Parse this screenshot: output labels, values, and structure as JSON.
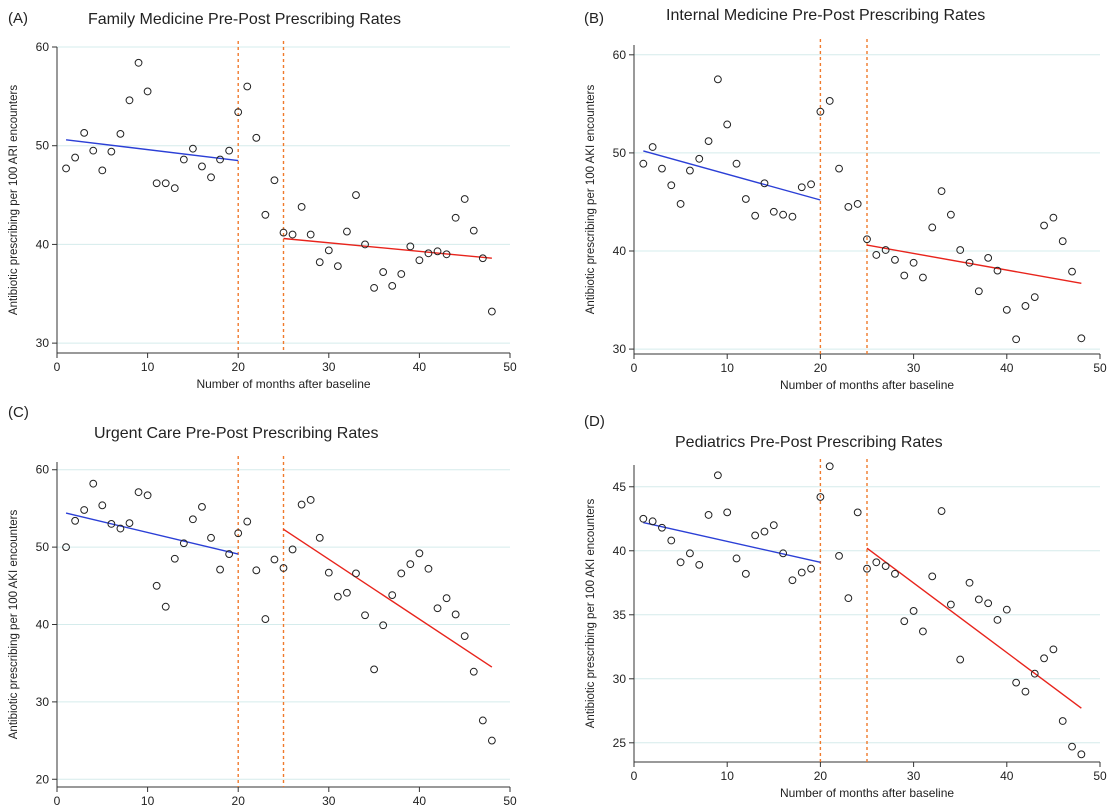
{
  "chart_data": [
    {
      "panel_label": "(A)",
      "type": "scatter",
      "title": "Family Medicine Pre-Post Prescribing Rates",
      "xlabel": "Number of months after baseline",
      "ylabel": "Antibiotic prescribing per 100 ARI encounters",
      "xlim": [
        0,
        50
      ],
      "ylim": [
        29,
        60
      ],
      "xticks": [
        0,
        10,
        20,
        30,
        40,
        50
      ],
      "yticks": [
        30,
        40,
        50,
        60
      ],
      "grid": true,
      "vlines": [
        20,
        25
      ],
      "points": [
        [
          1,
          47.7
        ],
        [
          2,
          48.8
        ],
        [
          3,
          51.3
        ],
        [
          4,
          49.5
        ],
        [
          5,
          47.5
        ],
        [
          6,
          49.4
        ],
        [
          7,
          51.2
        ],
        [
          8,
          54.6
        ],
        [
          9,
          58.4
        ],
        [
          10,
          55.5
        ],
        [
          11,
          46.2
        ],
        [
          12,
          46.2
        ],
        [
          13,
          45.7
        ],
        [
          14,
          48.6
        ],
        [
          15,
          49.7
        ],
        [
          16,
          47.9
        ],
        [
          17,
          46.8
        ],
        [
          18,
          48.6
        ],
        [
          19,
          49.5
        ],
        [
          20,
          53.4
        ],
        [
          21,
          56.0
        ],
        [
          22,
          50.8
        ],
        [
          23,
          43.0
        ],
        [
          24,
          46.5
        ],
        [
          25,
          41.2
        ],
        [
          26,
          41.0
        ],
        [
          27,
          43.8
        ],
        [
          28,
          41.0
        ],
        [
          29,
          38.2
        ],
        [
          30,
          39.4
        ],
        [
          31,
          37.8
        ],
        [
          32,
          41.3
        ],
        [
          33,
          45.0
        ],
        [
          34,
          40.0
        ],
        [
          35,
          35.6
        ],
        [
          36,
          37.2
        ],
        [
          37,
          35.8
        ],
        [
          38,
          37.0
        ],
        [
          39,
          39.8
        ],
        [
          40,
          38.4
        ],
        [
          41,
          39.1
        ],
        [
          42,
          39.3
        ],
        [
          43,
          39.0
        ],
        [
          44,
          42.7
        ],
        [
          45,
          44.6
        ],
        [
          46,
          41.4
        ],
        [
          47,
          38.6
        ],
        [
          48,
          33.2
        ]
      ],
      "trend_pre": [
        [
          1,
          50.6
        ],
        [
          20,
          48.5
        ]
      ],
      "trend_post": [
        [
          25,
          40.6
        ],
        [
          48,
          38.6
        ]
      ]
    },
    {
      "panel_label": "(B)",
      "type": "scatter",
      "title": "Internal Medicine Pre-Post Prescribing Rates",
      "xlabel": "Number of months after baseline",
      "ylabel": "Antibiotic prescribing per 100 AKI encounters",
      "xlim": [
        0,
        50
      ],
      "ylim": [
        29.5,
        61
      ],
      "xticks": [
        0,
        10,
        20,
        30,
        40,
        50
      ],
      "yticks": [
        30,
        40,
        50,
        60
      ],
      "grid": true,
      "vlines": [
        20,
        25
      ],
      "points": [
        [
          1,
          48.9
        ],
        [
          2,
          50.6
        ],
        [
          3,
          48.4
        ],
        [
          4,
          46.7
        ],
        [
          5,
          44.8
        ],
        [
          6,
          48.2
        ],
        [
          7,
          49.4
        ],
        [
          8,
          51.2
        ],
        [
          9,
          57.5
        ],
        [
          10,
          52.9
        ],
        [
          11,
          48.9
        ],
        [
          12,
          45.3
        ],
        [
          13,
          43.6
        ],
        [
          14,
          46.9
        ],
        [
          15,
          44.0
        ],
        [
          16,
          43.7
        ],
        [
          17,
          43.5
        ],
        [
          18,
          46.5
        ],
        [
          19,
          46.8
        ],
        [
          20,
          54.2
        ],
        [
          21,
          55.3
        ],
        [
          22,
          48.4
        ],
        [
          23,
          44.5
        ],
        [
          24,
          44.8
        ],
        [
          25,
          41.2
        ],
        [
          26,
          39.6
        ],
        [
          27,
          40.1
        ],
        [
          28,
          39.1
        ],
        [
          29,
          37.5
        ],
        [
          30,
          38.8
        ],
        [
          31,
          37.3
        ],
        [
          32,
          42.4
        ],
        [
          33,
          46.1
        ],
        [
          34,
          43.7
        ],
        [
          35,
          40.1
        ],
        [
          36,
          38.8
        ],
        [
          37,
          35.9
        ],
        [
          38,
          39.3
        ],
        [
          39,
          38.0
        ],
        [
          40,
          34.0
        ],
        [
          41,
          31.0
        ],
        [
          42,
          34.4
        ],
        [
          43,
          35.3
        ],
        [
          44,
          42.6
        ],
        [
          45,
          43.4
        ],
        [
          46,
          41.0
        ],
        [
          47,
          37.9
        ],
        [
          48,
          31.1
        ]
      ],
      "trend_pre": [
        [
          1,
          50.2
        ],
        [
          20,
          45.2
        ]
      ],
      "trend_post": [
        [
          25,
          40.6
        ],
        [
          48,
          36.7
        ]
      ]
    },
    {
      "panel_label": "(C)",
      "type": "scatter",
      "title": "Urgent Care Pre-Post Prescribing Rates",
      "xlabel": "Number of months after baseline",
      "ylabel": "Antibiotic prescribing per 100 AKI encounters",
      "xlim": [
        0,
        50
      ],
      "ylim": [
        19,
        61
      ],
      "xticks": [
        0,
        10,
        20,
        30,
        40,
        50
      ],
      "yticks": [
        20,
        30,
        40,
        50,
        60
      ],
      "grid": true,
      "vlines": [
        20,
        25
      ],
      "points": [
        [
          1,
          50.0
        ],
        [
          2,
          53.4
        ],
        [
          3,
          54.8
        ],
        [
          4,
          58.2
        ],
        [
          5,
          55.4
        ],
        [
          6,
          53.0
        ],
        [
          7,
          52.4
        ],
        [
          8,
          53.1
        ],
        [
          9,
          57.1
        ],
        [
          10,
          56.7
        ],
        [
          11,
          45.0
        ],
        [
          12,
          42.3
        ],
        [
          13,
          48.5
        ],
        [
          14,
          50.5
        ],
        [
          15,
          53.6
        ],
        [
          16,
          55.2
        ],
        [
          17,
          51.2
        ],
        [
          18,
          47.1
        ],
        [
          19,
          49.1
        ],
        [
          20,
          51.8
        ],
        [
          21,
          53.3
        ],
        [
          22,
          47.0
        ],
        [
          23,
          40.7
        ],
        [
          24,
          48.4
        ],
        [
          25,
          47.3
        ],
        [
          26,
          49.7
        ],
        [
          27,
          55.5
        ],
        [
          28,
          56.1
        ],
        [
          29,
          51.2
        ],
        [
          30,
          46.7
        ],
        [
          31,
          43.6
        ],
        [
          32,
          44.1
        ],
        [
          33,
          46.6
        ],
        [
          34,
          41.2
        ],
        [
          35,
          34.2
        ],
        [
          36,
          39.9
        ],
        [
          37,
          43.8
        ],
        [
          38,
          46.6
        ],
        [
          39,
          47.8
        ],
        [
          40,
          49.2
        ],
        [
          41,
          47.2
        ],
        [
          42,
          42.1
        ],
        [
          43,
          43.4
        ],
        [
          44,
          41.3
        ],
        [
          45,
          38.5
        ],
        [
          46,
          33.9
        ],
        [
          47,
          27.6
        ],
        [
          48,
          25.0
        ]
      ],
      "trend_pre": [
        [
          1,
          54.4
        ],
        [
          20,
          49.1
        ]
      ],
      "trend_post": [
        [
          25,
          52.3
        ],
        [
          48,
          34.5
        ]
      ]
    },
    {
      "panel_label": "(D)",
      "type": "scatter",
      "title": "Pediatrics Pre-Post Prescribing Rates",
      "xlabel": "Number of months after baseline",
      "ylabel": "Antibiotic prescribing per 100 AKI encounters",
      "xlim": [
        0,
        50
      ],
      "ylim": [
        23.5,
        46.7
      ],
      "xticks": [
        0,
        10,
        20,
        30,
        40,
        50
      ],
      "yticks": [
        25,
        30,
        35,
        40,
        45
      ],
      "grid": true,
      "vlines": [
        20,
        25
      ],
      "points": [
        [
          1,
          42.5
        ],
        [
          2,
          42.3
        ],
        [
          3,
          41.8
        ],
        [
          4,
          40.8
        ],
        [
          5,
          39.1
        ],
        [
          6,
          39.8
        ],
        [
          7,
          38.9
        ],
        [
          8,
          42.8
        ],
        [
          9,
          45.9
        ],
        [
          10,
          43.0
        ],
        [
          11,
          39.4
        ],
        [
          12,
          38.2
        ],
        [
          13,
          41.2
        ],
        [
          14,
          41.5
        ],
        [
          15,
          42.0
        ],
        [
          16,
          39.8
        ],
        [
          17,
          37.7
        ],
        [
          18,
          38.3
        ],
        [
          19,
          38.6
        ],
        [
          20,
          44.2
        ],
        [
          21,
          46.6
        ],
        [
          22,
          39.6
        ],
        [
          23,
          36.3
        ],
        [
          24,
          43.0
        ],
        [
          25,
          38.6
        ],
        [
          26,
          39.1
        ],
        [
          27,
          38.8
        ],
        [
          28,
          38.2
        ],
        [
          29,
          34.5
        ],
        [
          30,
          35.3
        ],
        [
          31,
          33.7
        ],
        [
          32,
          38.0
        ],
        [
          33,
          43.1
        ],
        [
          34,
          35.8
        ],
        [
          35,
          31.5
        ],
        [
          36,
          37.5
        ],
        [
          37,
          36.2
        ],
        [
          38,
          35.9
        ],
        [
          39,
          34.6
        ],
        [
          40,
          35.4
        ],
        [
          41,
          29.7
        ],
        [
          42,
          29.0
        ],
        [
          43,
          30.4
        ],
        [
          44,
          31.6
        ],
        [
          45,
          32.3
        ],
        [
          46,
          26.7
        ],
        [
          47,
          24.7
        ],
        [
          48,
          24.1
        ]
      ],
      "trend_pre": [
        [
          1,
          42.2
        ],
        [
          20,
          39.1
        ]
      ],
      "trend_post": [
        [
          25,
          40.2
        ],
        [
          48,
          27.7
        ]
      ]
    }
  ],
  "colors": {
    "pre_trend": "#2b3fd6",
    "post_trend": "#e8241c",
    "intervention_line": "#f07a2c",
    "gridline": "#d5ecec",
    "axis": "#333333",
    "marker_edge": "#222222"
  }
}
